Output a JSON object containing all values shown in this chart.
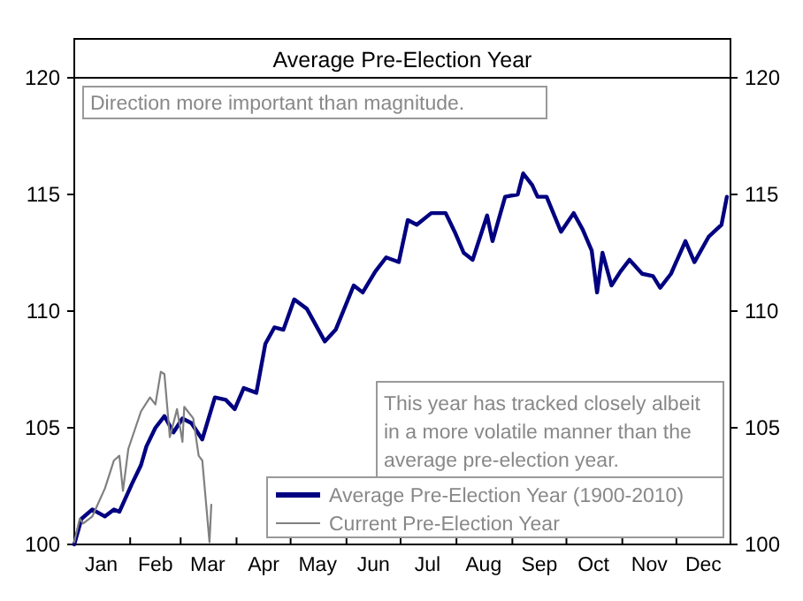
{
  "chart_data": {
    "type": "line",
    "title": "Average Pre-Election Year",
    "xlim": [
      "--01-01",
      "--12-31"
    ],
    "xticks": [
      {
        "value": "--01-16",
        "label": "Jan"
      },
      {
        "value": "--02-01",
        "label": null
      },
      {
        "value": "--02-15",
        "label": "Feb"
      },
      {
        "value": "--03-01",
        "label": null
      },
      {
        "value": "--03-16",
        "label": "Mar"
      },
      {
        "value": "--04-01",
        "label": null
      },
      {
        "value": "--04-16",
        "label": "Apr"
      },
      {
        "value": "--05-01",
        "label": null
      },
      {
        "value": "--05-16",
        "label": "May"
      },
      {
        "value": "--06-01",
        "label": null
      },
      {
        "value": "--06-16",
        "label": "Jun"
      },
      {
        "value": "--07-01",
        "label": null
      },
      {
        "value": "--07-16",
        "label": "Jul"
      },
      {
        "value": "--08-01",
        "label": null
      },
      {
        "value": "--08-16",
        "label": "Aug"
      },
      {
        "value": "--09-01",
        "label": null
      },
      {
        "value": "--09-16",
        "label": "Sep"
      },
      {
        "value": "--10-01",
        "label": null
      },
      {
        "value": "--10-16",
        "label": "Oct"
      },
      {
        "value": "--11-01",
        "label": null
      },
      {
        "value": "--11-16",
        "label": "Nov"
      },
      {
        "value": "--12-01",
        "label": null
      },
      {
        "value": "--12-16",
        "label": "Dec"
      }
    ],
    "ylim": [
      100,
      120
    ],
    "yticks": [
      100,
      105,
      110,
      115,
      120
    ],
    "y2lim": [
      100,
      120
    ],
    "y2ticks": [
      100,
      105,
      110,
      115,
      120
    ],
    "legend": "bottom right",
    "grid": false,
    "annotations": [
      "Direction more important than magnitude.",
      "This year has tracked closely albeit in a more volatile manner than the average pre-election year."
    ],
    "series": [
      {
        "name": "Average Pre-Election Year (1900-2010)",
        "color": "#000080",
        "x": [
          "--01-01",
          "--01-05",
          "--01-11",
          "--01-18",
          "--01-23",
          "--01-26",
          "--02-02",
          "--02-07",
          "--02-10",
          "--02-15",
          "--02-20",
          "--02-25",
          "--03-02",
          "--03-07",
          "--03-13",
          "--03-20",
          "--03-26",
          "--03-31",
          "--04-05",
          "--04-12",
          "--04-17",
          "--04-22",
          "--04-27",
          "--05-03",
          "--05-10",
          "--05-20",
          "--05-26",
          "--06-05",
          "--06-10",
          "--06-17",
          "--06-23",
          "--06-30",
          "--07-05",
          "--07-10",
          "--07-18",
          "--07-26",
          "--07-31",
          "--08-05",
          "--08-10",
          "--08-18",
          "--08-21",
          "--08-28",
          "--09-04",
          "--09-07",
          "--09-12",
          "--09-15",
          "--09-20",
          "--09-28",
          "--10-05",
          "--10-10",
          "--10-15",
          "--10-18",
          "--10-21",
          "--10-26",
          "--10-31",
          "--11-05",
          "--11-12",
          "--11-18",
          "--11-22",
          "--11-28",
          "--12-06",
          "--12-11",
          "--12-19",
          "--12-26",
          "--12-29"
        ],
        "values": [
          100,
          101.1,
          101.5,
          101.2,
          101.5,
          101.4,
          102.6,
          103.4,
          104.2,
          105.0,
          105.5,
          104.8,
          105.4,
          105.2,
          104.5,
          106.3,
          106.2,
          105.8,
          106.7,
          106.5,
          108.6,
          109.3,
          109.2,
          110.5,
          110.1,
          108.7,
          109.2,
          111.1,
          110.8,
          111.7,
          112.3,
          112.1,
          113.9,
          113.7,
          114.2,
          114.2,
          113.4,
          112.5,
          112.2,
          114.1,
          113.0,
          114.9,
          115.0,
          115.9,
          115.4,
          114.9,
          114.9,
          113.4,
          114.2,
          113.5,
          112.6,
          110.8,
          112.5,
          111.1,
          111.7,
          112.2,
          111.6,
          111.5,
          111.0,
          111.6,
          113.0,
          112.1,
          113.2,
          113.7,
          114.9
        ]
      },
      {
        "name": "Current Pre-Election Year",
        "color": "#808080",
        "x": [
          "--01-01",
          "--01-04",
          "--01-06",
          "--01-11",
          "--01-18",
          "--01-23",
          "--01-26",
          "--01-28",
          "--01-31",
          "--02-07",
          "--02-12",
          "--02-15",
          "--02-18",
          "--02-20",
          "--02-23",
          "--02-27",
          "--03-02",
          "--03-03",
          "--03-08",
          "--03-11",
          "--03-13",
          "--03-17",
          "--03-18"
        ],
        "values": [
          100.1,
          101.1,
          100.9,
          101.2,
          102.4,
          103.6,
          103.8,
          102.3,
          104.1,
          105.7,
          106.3,
          106.0,
          107.4,
          107.3,
          104.6,
          105.8,
          104.4,
          105.9,
          105.4,
          103.8,
          103.6,
          100.1,
          101.7
        ]
      }
    ]
  }
}
